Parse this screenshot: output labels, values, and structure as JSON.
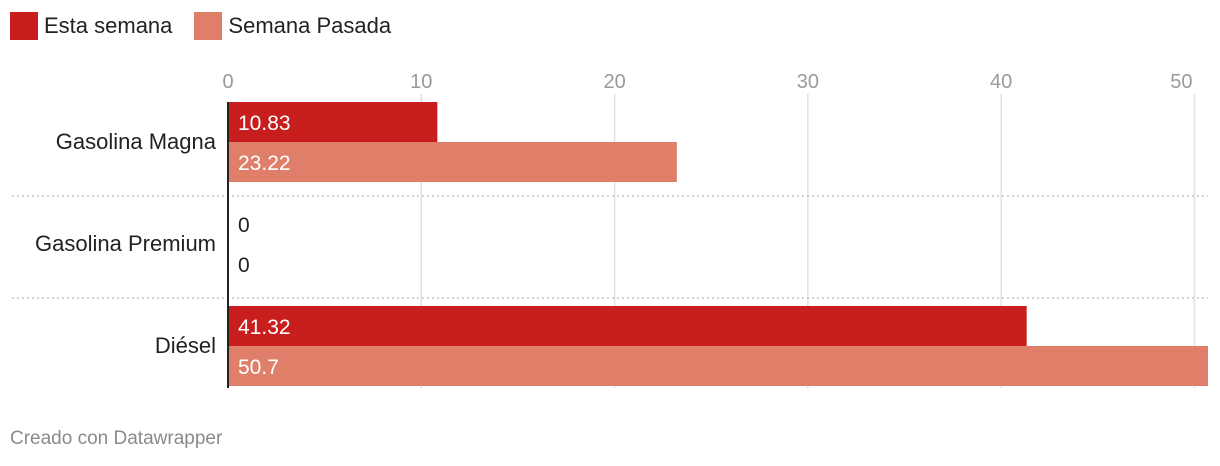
{
  "legend": {
    "items": [
      {
        "label": "Esta semana",
        "color": "#c91e1e"
      },
      {
        "label": "Semana Pasada",
        "color": "#e07f69"
      }
    ]
  },
  "footer": {
    "credit": "Creado con Datawrapper"
  },
  "chart_data": {
    "type": "bar",
    "orientation": "horizontal",
    "categories": [
      "Gasolina Magna",
      "Gasolina Premium",
      "Diésel"
    ],
    "series": [
      {
        "name": "Esta semana",
        "color": "#c91e1e",
        "values": [
          10.83,
          0,
          41.32
        ],
        "labels": [
          "10.83",
          "0",
          "41.32"
        ]
      },
      {
        "name": "Semana Pasada",
        "color": "#e07f69",
        "values": [
          23.22,
          0,
          50.7
        ],
        "labels": [
          "23.22",
          "0",
          "50.7"
        ]
      }
    ],
    "xlim": [
      0,
      50.7
    ],
    "xticks": [
      0,
      10,
      20,
      30,
      40,
      50
    ],
    "xtick_labels": [
      "0",
      "10",
      "20",
      "30",
      "40",
      "50"
    ],
    "grid": true,
    "legend_position": "top-left"
  }
}
